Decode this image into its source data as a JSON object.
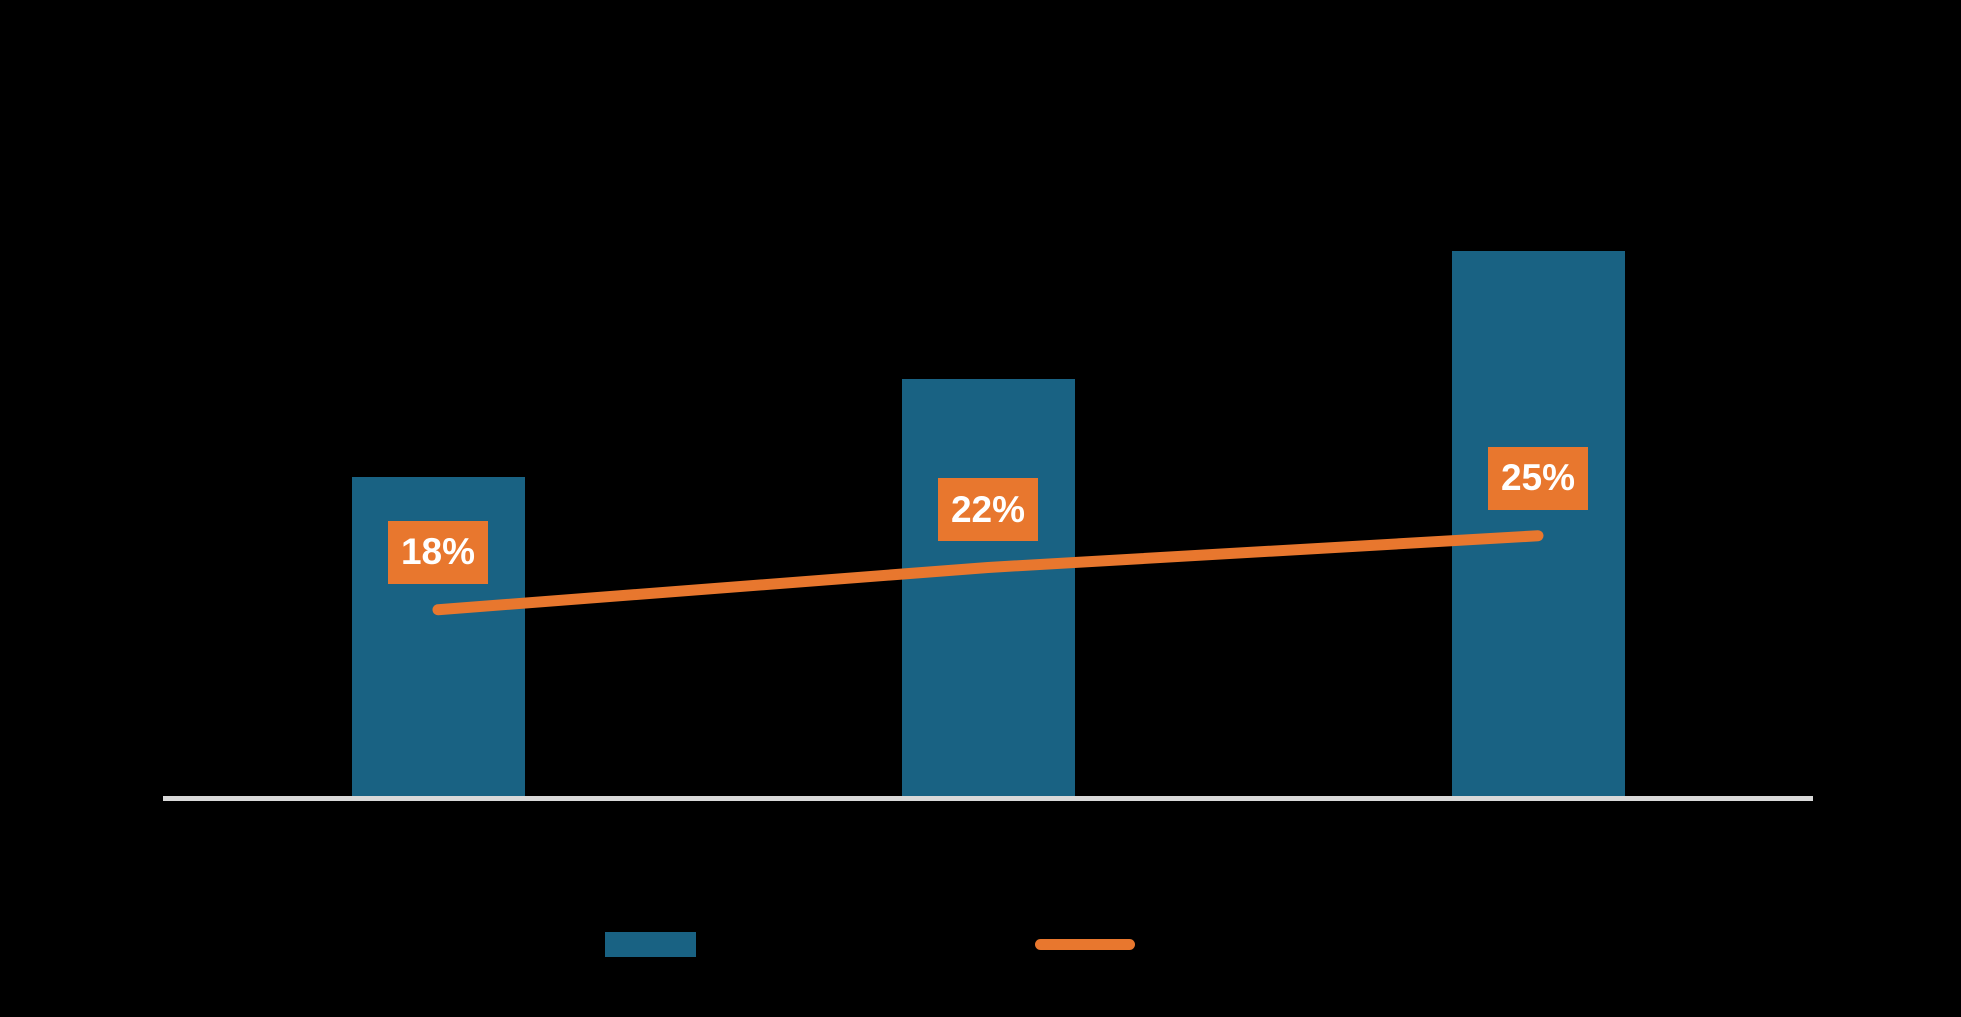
{
  "chart_data": {
    "type": "combo",
    "background_color": "#000000",
    "plot": {
      "x_axis_baseline_visible": true,
      "gridlines_visible": false,
      "tick_labels_visible": false,
      "category_count": 3
    },
    "series": [
      {
        "name": "bar-series",
        "type": "bar",
        "color": "#196283",
        "data_labels_visible": false,
        "relative_heights": [
          0.585,
          0.765,
          1.0
        ]
      },
      {
        "name": "line-series",
        "type": "line",
        "color": "#E8772E",
        "values": [
          18,
          22,
          25
        ],
        "labels": [
          "18%",
          "22%",
          "25%"
        ],
        "label_background": "#E8772E",
        "label_text_color": "#FFFFFF"
      }
    ],
    "axis": {
      "x_axis_line_color": "#D9D9D9"
    },
    "legend": {
      "position": "bottom",
      "entries": [
        {
          "swatch": "bar",
          "color": "#196283",
          "label": ""
        },
        {
          "swatch": "line",
          "color": "#E8772E",
          "label": ""
        }
      ]
    }
  }
}
